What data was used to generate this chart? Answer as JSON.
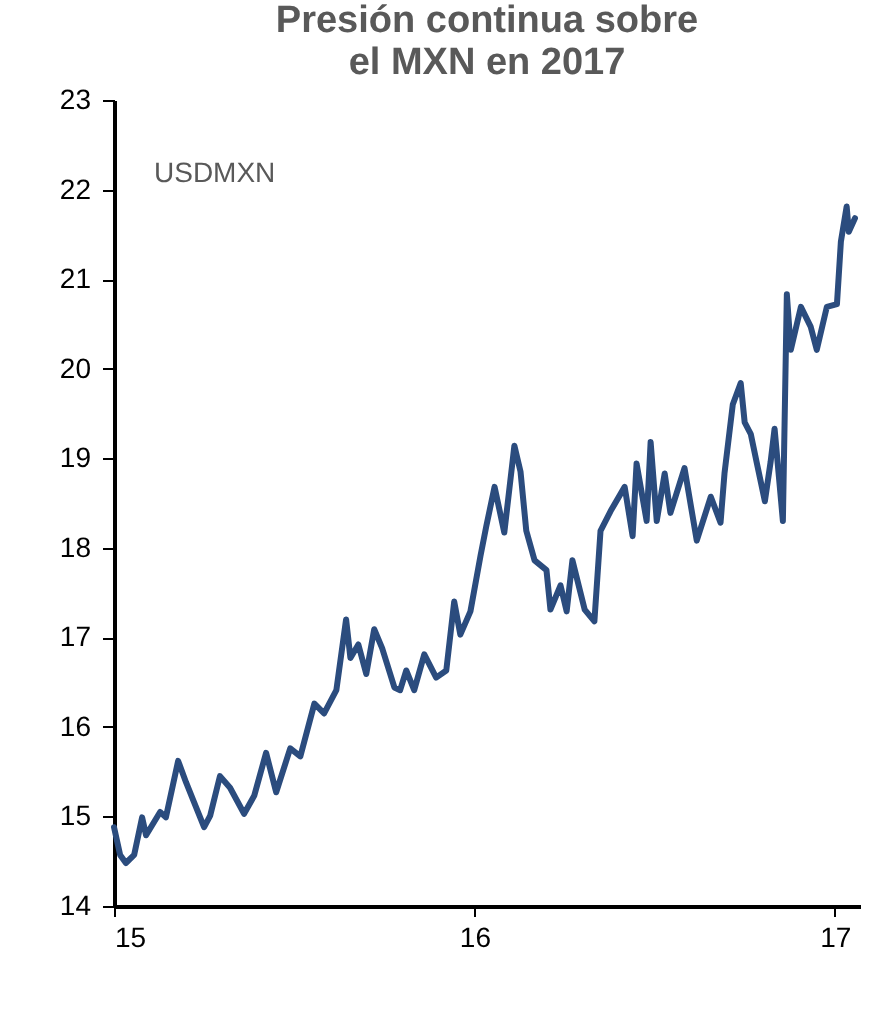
{
  "chart_data": {
    "type": "line",
    "title": "Presión continua sobre\nel MXN en 2017",
    "x": [
      15.0,
      15.017,
      15.033,
      15.056,
      15.078,
      15.089,
      15.128,
      15.144,
      15.178,
      15.2,
      15.222,
      15.25,
      15.267,
      15.294,
      15.322,
      15.361,
      15.389,
      15.422,
      15.45,
      15.489,
      15.517,
      15.556,
      15.583,
      15.617,
      15.644,
      15.656,
      15.678,
      15.7,
      15.722,
      15.744,
      15.778,
      15.794,
      15.811,
      15.833,
      15.861,
      15.894,
      15.922,
      15.944,
      15.961,
      15.989,
      16.017,
      16.033,
      16.056,
      16.083,
      16.111,
      16.128,
      16.144,
      16.167,
      16.2,
      16.211,
      16.239,
      16.256,
      16.272,
      16.306,
      16.333,
      16.35,
      16.378,
      16.417,
      16.439,
      16.45,
      16.478,
      16.489,
      16.506,
      16.528,
      16.544,
      16.583,
      16.617,
      16.656,
      16.683,
      16.694,
      16.717,
      16.739,
      16.75,
      16.767,
      16.783,
      16.806,
      16.822,
      16.833,
      16.856,
      16.867,
      16.878,
      16.906,
      16.933,
      16.95,
      16.978,
      17.006,
      17.017,
      17.033,
      17.039,
      17.056
    ],
    "series": [
      {
        "name": "USDMXN",
        "color": "#2b4c7e",
        "values": [
          14.88,
          14.57,
          14.48,
          14.57,
          14.99,
          14.79,
          15.05,
          14.99,
          15.62,
          15.38,
          15.16,
          14.88,
          15.01,
          15.45,
          15.32,
          15.03,
          15.23,
          15.71,
          15.27,
          15.76,
          15.67,
          16.26,
          16.15,
          16.41,
          17.2,
          16.77,
          16.92,
          16.59,
          17.09,
          16.88,
          16.44,
          16.41,
          16.63,
          16.41,
          16.81,
          16.55,
          16.63,
          17.4,
          17.03,
          17.29,
          17.91,
          18.24,
          18.68,
          18.17,
          19.14,
          18.85,
          18.19,
          17.86,
          17.75,
          17.31,
          17.58,
          17.29,
          17.86,
          17.31,
          17.18,
          18.19,
          18.41,
          18.68,
          18.13,
          18.94,
          18.3,
          19.18,
          18.3,
          18.83,
          18.39,
          18.89,
          18.08,
          18.57,
          18.28,
          18.83,
          19.6,
          19.84,
          19.4,
          19.27,
          18.96,
          18.52,
          18.96,
          19.33,
          18.3,
          20.83,
          20.21,
          20.69,
          20.47,
          20.21,
          20.69,
          20.72,
          21.42,
          21.81,
          21.53,
          21.68
        ]
      }
    ],
    "xlim": [
      15,
      17.07
    ],
    "xticks": [
      15,
      16,
      17
    ],
    "ylim": [
      14,
      23
    ],
    "yticks": [
      14,
      15,
      16,
      17,
      18,
      19,
      20,
      21,
      22,
      23
    ],
    "grid": false,
    "line_style": "solid"
  }
}
